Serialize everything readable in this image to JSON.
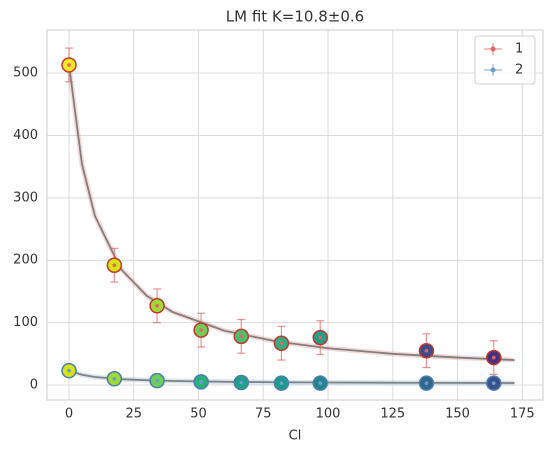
{
  "chart_data": {
    "type": "scatter",
    "title": "LM fit K=10.8±0.6",
    "xlabel": "Cl",
    "x": [
      0,
      17.5,
      34,
      51,
      66.5,
      82,
      97,
      138,
      164
    ],
    "series": [
      {
        "name": "1",
        "color": "#e06666",
        "edge_color": "#c0392b",
        "values": [
          513,
          192,
          127,
          88,
          78,
          67,
          76,
          55,
          44
        ],
        "errors": [
          27,
          27,
          27,
          27,
          27,
          27,
          27,
          27,
          27
        ],
        "point_colors": [
          "#fde725",
          "#d8e219",
          "#a0da39",
          "#6ece58",
          "#4ac16d",
          "#2ab07f",
          "#1fa187",
          "#3e4a89",
          "#46327e"
        ],
        "fit_values": [
          513,
          354,
          271,
          186,
          143,
          117,
          87,
          70,
          59,
          50,
          44,
          40
        ]
      },
      {
        "name": "2",
        "color": "#6a9fcf",
        "edge_color": "#4a7fb0",
        "values": [
          23,
          10,
          7,
          5,
          4,
          3,
          3,
          3,
          3
        ],
        "errors": [
          3,
          3,
          2,
          2,
          2,
          2,
          2,
          2,
          2
        ],
        "point_colors": [
          "#d8e219",
          "#a0da39",
          "#6ece58",
          "#2ab07f",
          "#1fa187",
          "#1e9b8a",
          "#25858e",
          "#31688e",
          "#3b528b"
        ],
        "fit_values": [
          23,
          16.4,
          12.9,
          9.4,
          7.6,
          6.5,
          5.2,
          4.5,
          4.0,
          3.7,
          3.4,
          3.2
        ]
      }
    ],
    "fit_x": [
      0,
      5,
      10,
      20,
      30,
      40,
      60,
      80,
      100,
      125,
      150,
      172
    ],
    "fit_color": "#808080",
    "xlim": [
      -8.5,
      183
    ],
    "ylim": [
      -24,
      569
    ],
    "xticks": [
      0,
      25,
      50,
      75,
      100,
      125,
      150,
      175
    ],
    "yticks": [
      0,
      100,
      200,
      300,
      400,
      500
    ],
    "grid": true,
    "legend": "upper right"
  }
}
